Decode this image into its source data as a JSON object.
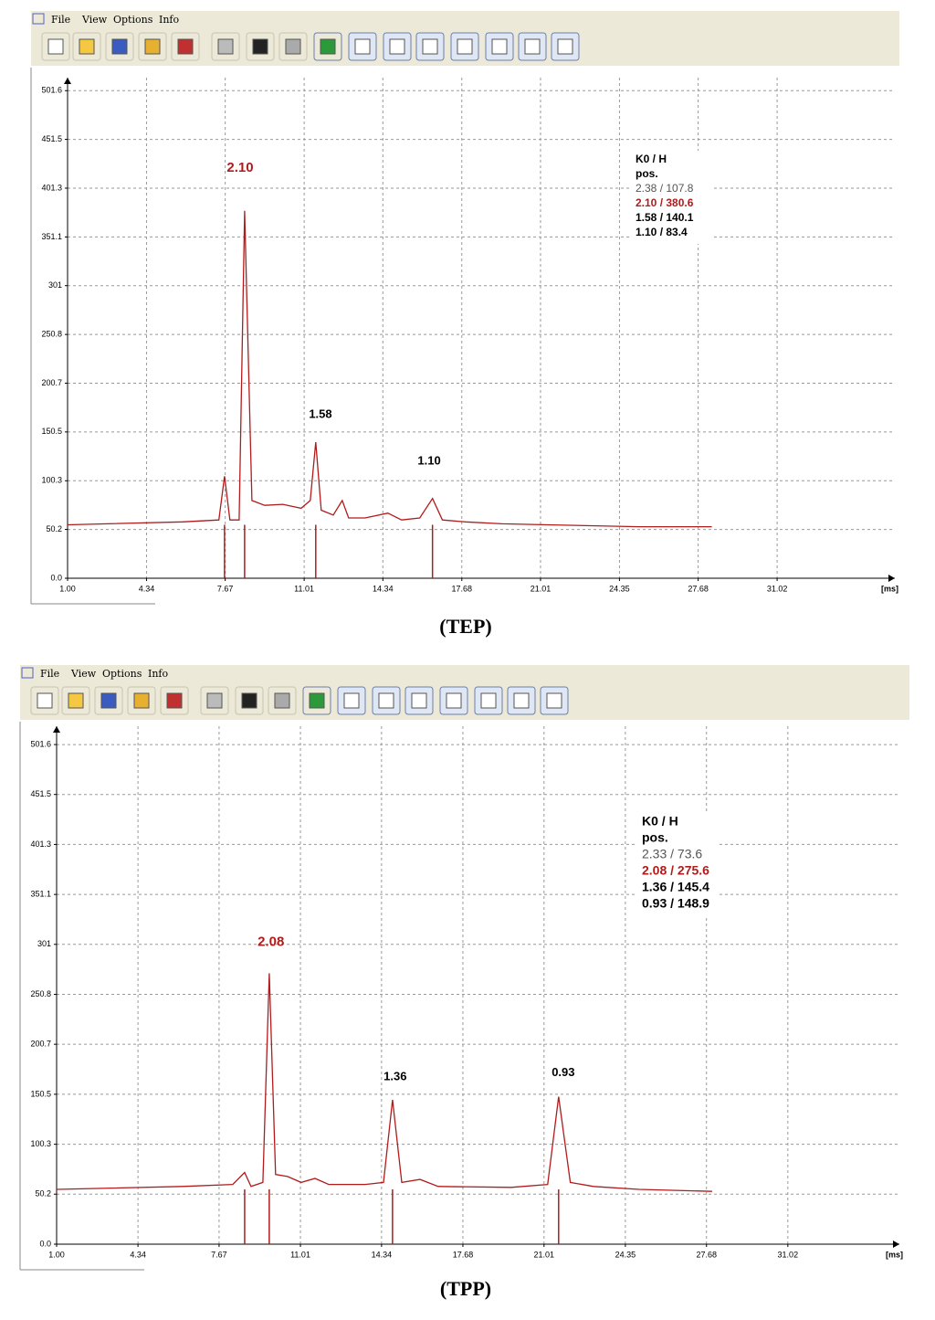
{
  "windows": [
    {
      "menu": [
        "File",
        "View",
        "Options",
        "Info"
      ],
      "caption": "(TEP)"
    },
    {
      "menu": [
        "File",
        "View",
        "Options",
        "Info"
      ],
      "caption": "(TPP)"
    }
  ],
  "chart_data": [
    {
      "type": "line",
      "x_unit": "[ms]",
      "xlim": [
        1,
        36
      ],
      "ylim": [
        0,
        515
      ],
      "xticks": [
        {
          "value": 1,
          "label": "1.00"
        },
        4.34,
        7.67,
        11.01,
        14.34,
        17.68,
        21.01,
        24.35,
        27.68,
        31.02
      ],
      "yticks": [
        {
          "value": 0,
          "label": "0.0"
        },
        50.2,
        100.3,
        150.5,
        200.7,
        250.8,
        301.0,
        351.1,
        401.3,
        451.5,
        501.6
      ],
      "grid": true,
      "series": [
        {
          "color": "#b01c1c",
          "x": [
            1.0,
            5.86,
            7.4,
            7.64,
            7.87,
            8.26,
            8.49,
            8.8,
            9.34,
            10.11,
            10.88,
            11.27,
            11.5,
            11.73,
            12.24,
            12.62,
            12.89,
            13.59,
            14.55,
            15.13,
            15.9,
            16.44,
            16.86,
            17.83,
            19.38,
            21.31,
            25.17,
            28.26
          ],
          "values": [
            55,
            58,
            60,
            105,
            60,
            60,
            378,
            80,
            75,
            76,
            72,
            80,
            140,
            70,
            65,
            80,
            62,
            62,
            67,
            60,
            62,
            82,
            60,
            58,
            56,
            55,
            53,
            53
          ]
        }
      ],
      "peak_markers": [
        7.64,
        8.49,
        11.5,
        16.44
      ],
      "annotations": [
        {
          "text": "2.10",
          "x": 8.3,
          "y": 422,
          "color": "#b01c1c"
        },
        {
          "text": "1.58",
          "x": 11.7,
          "y": 168,
          "color": "#000000"
        },
        {
          "text": "1.10",
          "x": 16.3,
          "y": 120,
          "color": "#000000"
        }
      ],
      "peak_table": {
        "header": [
          "K0 / H",
          "pos."
        ],
        "rows": [
          {
            "text": "2.38 / 107.8",
            "color": "#555555"
          },
          {
            "text": "2.10 / 380.6",
            "color": "#b01c1c"
          },
          {
            "text": "1.58 / 140.1",
            "color": "#000000"
          },
          {
            "text": "1.10 / 83.4",
            "color": "#000000"
          }
        ]
      }
    },
    {
      "type": "line",
      "x_unit": "[ms]",
      "xlim": [
        1,
        35.6
      ],
      "ylim": [
        0,
        520
      ],
      "xticks": [
        {
          "value": 1,
          "label": "1.00"
        },
        4.34,
        7.67,
        11.01,
        14.34,
        17.68,
        21.01,
        24.35,
        27.68,
        31.02
      ],
      "yticks": [
        {
          "value": 0,
          "label": "0.0"
        },
        50.2,
        100.3,
        150.5,
        200.7,
        250.8,
        301.0,
        351.1,
        401.3,
        451.5,
        501.6
      ],
      "grid": true,
      "series": [
        {
          "color": "#b01c1c",
          "x": [
            1.0,
            6.17,
            8.23,
            8.72,
            8.98,
            9.47,
            9.73,
            9.99,
            10.48,
            11.04,
            11.61,
            12.17,
            13.67,
            14.42,
            14.79,
            15.17,
            15.92,
            16.67,
            19.66,
            21.16,
            21.61,
            22.09,
            23.04,
            24.91,
            27.91
          ],
          "values": [
            55,
            58,
            60,
            72,
            58,
            62,
            272,
            70,
            68,
            62,
            66,
            60,
            60,
            62,
            145,
            62,
            65,
            58,
            57,
            60,
            148,
            62,
            58,
            55,
            53
          ]
        }
      ],
      "peak_markers": [
        8.72,
        9.73,
        14.79,
        21.61
      ],
      "annotations": [
        {
          "text": "2.08",
          "x": 9.8,
          "y": 303,
          "color": "#b01c1c"
        },
        {
          "text": "1.36",
          "x": 14.9,
          "y": 168,
          "color": "#000000"
        },
        {
          "text": "0.93",
          "x": 21.8,
          "y": 172,
          "color": "#000000"
        }
      ],
      "peak_table": {
        "header": [
          "K0 / H",
          "pos."
        ],
        "rows": [
          {
            "text": "2.33 / 73.6",
            "color": "#555555"
          },
          {
            "text": "2.08 / 275.6",
            "color": "#b01c1c"
          },
          {
            "text": "1.36 / 145.4",
            "color": "#000000"
          },
          {
            "text": "0.93 / 148.9",
            "color": "#000000"
          }
        ]
      }
    }
  ]
}
